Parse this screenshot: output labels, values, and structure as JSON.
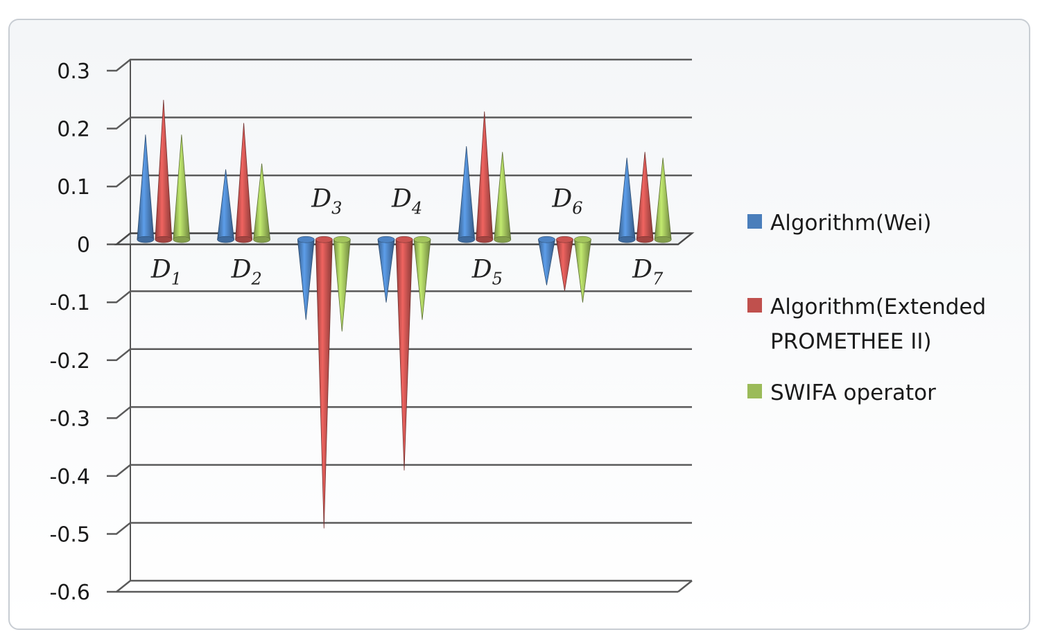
{
  "chart_data": {
    "type": "bar",
    "style": "3d-cone",
    "categories": [
      "D1",
      "D2",
      "D3",
      "D4",
      "D5",
      "D6",
      "D7"
    ],
    "category_labels": [
      {
        "base": "D",
        "sub": "1"
      },
      {
        "base": "D",
        "sub": "2"
      },
      {
        "base": "D",
        "sub": "3"
      },
      {
        "base": "D",
        "sub": "4"
      },
      {
        "base": "D",
        "sub": "5"
      },
      {
        "base": "D",
        "sub": "6"
      },
      {
        "base": "D",
        "sub": "7"
      }
    ],
    "series": [
      {
        "name": "Algorithm(Wei)",
        "color": "#4a7ebb",
        "values": [
          0.18,
          0.12,
          -0.14,
          -0.11,
          0.16,
          -0.08,
          0.14
        ]
      },
      {
        "name": "Algorithm(Extended PROMETHEE II)",
        "color": "#c0504d",
        "values": [
          0.24,
          0.2,
          -0.5,
          -0.4,
          0.22,
          -0.09,
          0.15
        ]
      },
      {
        "name": "SWIFA operator",
        "color": "#9bbb59",
        "values": [
          0.18,
          0.13,
          -0.16,
          -0.14,
          0.15,
          -0.11,
          0.14
        ]
      }
    ],
    "y_ticks": [
      "0.3",
      "0.2",
      "0.1",
      "0",
      "-0.1",
      "-0.2",
      "-0.3",
      "-0.4",
      "-0.5",
      "-0.6"
    ],
    "ylim": [
      -0.6,
      0.3
    ],
    "grid": true,
    "legend_position": "right",
    "legend_lines": [
      [
        "Algorithm(Wei)"
      ],
      [
        "Algorithm(Extended",
        "PROMETHEE II)"
      ],
      [
        "SWIFA operator"
      ]
    ]
  }
}
